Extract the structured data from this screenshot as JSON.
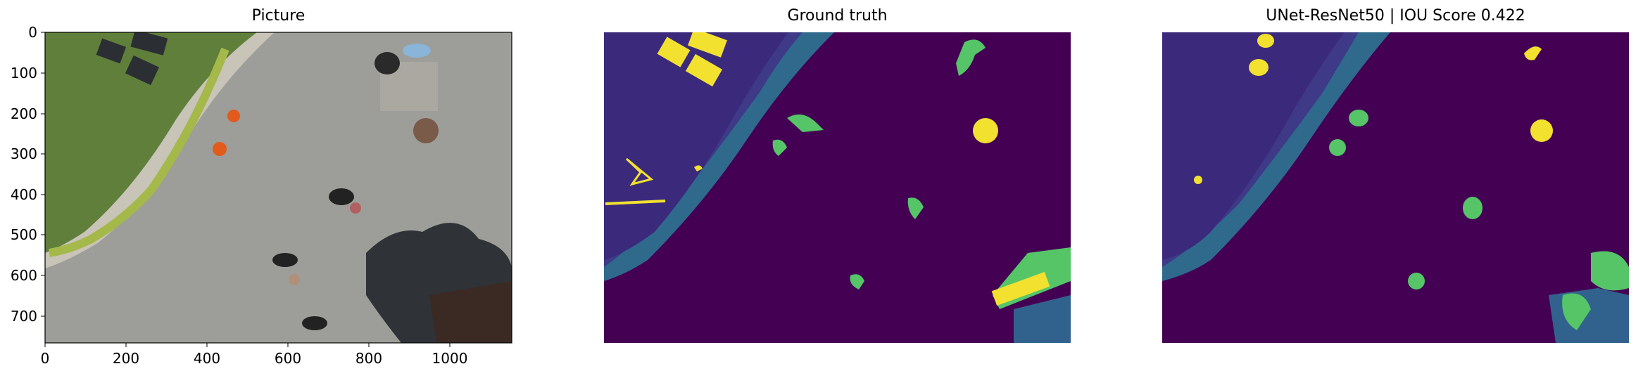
{
  "panels": {
    "picture": {
      "title": "Picture",
      "yticks": [
        "0",
        "100",
        "200",
        "300",
        "400",
        "500",
        "600",
        "700"
      ],
      "xticks": [
        "0",
        "200",
        "400",
        "600",
        "800",
        "1000"
      ]
    },
    "ground_truth": {
      "title": "Ground truth"
    },
    "prediction": {
      "title": "UNet-ResNet50 | IOU Score 0.422"
    }
  },
  "palette": {
    "viridis_dark": "#440154",
    "viridis_indigo": "#3b2a7c",
    "viridis_blue": "#31628d",
    "viridis_teal": "#2a8c8b",
    "viridis_green": "#55c568",
    "viridis_yellow": "#f2e12f",
    "grass": "#5f7f3a",
    "pavement": "#9c9c98"
  }
}
